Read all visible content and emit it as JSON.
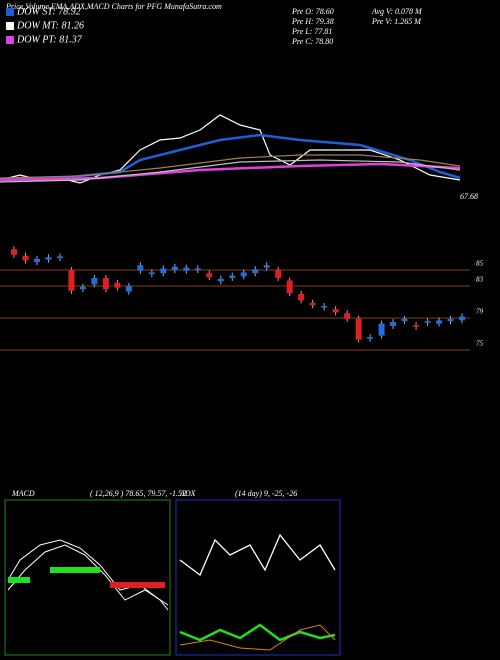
{
  "header": {
    "title": "Price,Volume,EMA,ADX,MACD Charts for PFG MunafaSutra.com"
  },
  "legend": [
    {
      "label": "DOW ST: 78.92",
      "color": "#1f5fd6"
    },
    {
      "label": "DOW MT: 81.26",
      "color": "#ffffff"
    },
    {
      "label": "DOW PT: 81.37",
      "color": "#e040e0"
    }
  ],
  "stats": [
    "Pre  O: 78.60",
    "Pre  H: 79.38",
    "Pre  L: 77.81",
    "Pre  C: 78.80",
    "Avg V: 0.078  M",
    "Pre  V: 1.265  M"
  ],
  "ema_panel": {
    "last_label": "67.68"
  },
  "price_panel": {
    "ylim": [
      73,
      88
    ],
    "yticks": [
      85,
      83,
      79,
      75
    ],
    "candles": {
      "open": [
        87.6,
        86.8,
        86.0,
        86.3,
        86.5,
        85.0,
        82.6,
        83.2,
        84.0,
        83.4,
        82.3,
        84.9,
        84.5,
        84.6,
        85.0,
        84.9,
        85.0,
        84.6,
        83.6,
        84.0,
        84.2,
        84.6,
        85.3,
        85.0,
        83.7,
        82.0,
        80.9,
        80.3,
        80.1,
        79.6,
        78.9,
        76.4,
        76.8,
        78.0,
        78.6,
        78.1,
        78.4,
        78.3,
        78.6,
        78.7
      ],
      "close": [
        86.9,
        86.2,
        86.4,
        86.6,
        86.7,
        82.4,
        82.9,
        84.0,
        82.6,
        82.8,
        83.0,
        85.6,
        84.7,
        85.2,
        85.4,
        85.3,
        85.2,
        84.1,
        83.9,
        84.3,
        84.7,
        85.1,
        85.6,
        84.0,
        82.1,
        81.2,
        80.6,
        80.5,
        79.7,
        78.9,
        76.3,
        76.6,
        78.3,
        78.5,
        78.9,
        77.9,
        78.6,
        78.7,
        78.9,
        79.2
      ]
    }
  },
  "macd": {
    "label": "MACD",
    "params": "( 12,26,9 ) 78.65, 79.57, -1.52"
  },
  "adx": {
    "label": "ADX",
    "params": "(14  day) 9, -25, -26"
  }
}
